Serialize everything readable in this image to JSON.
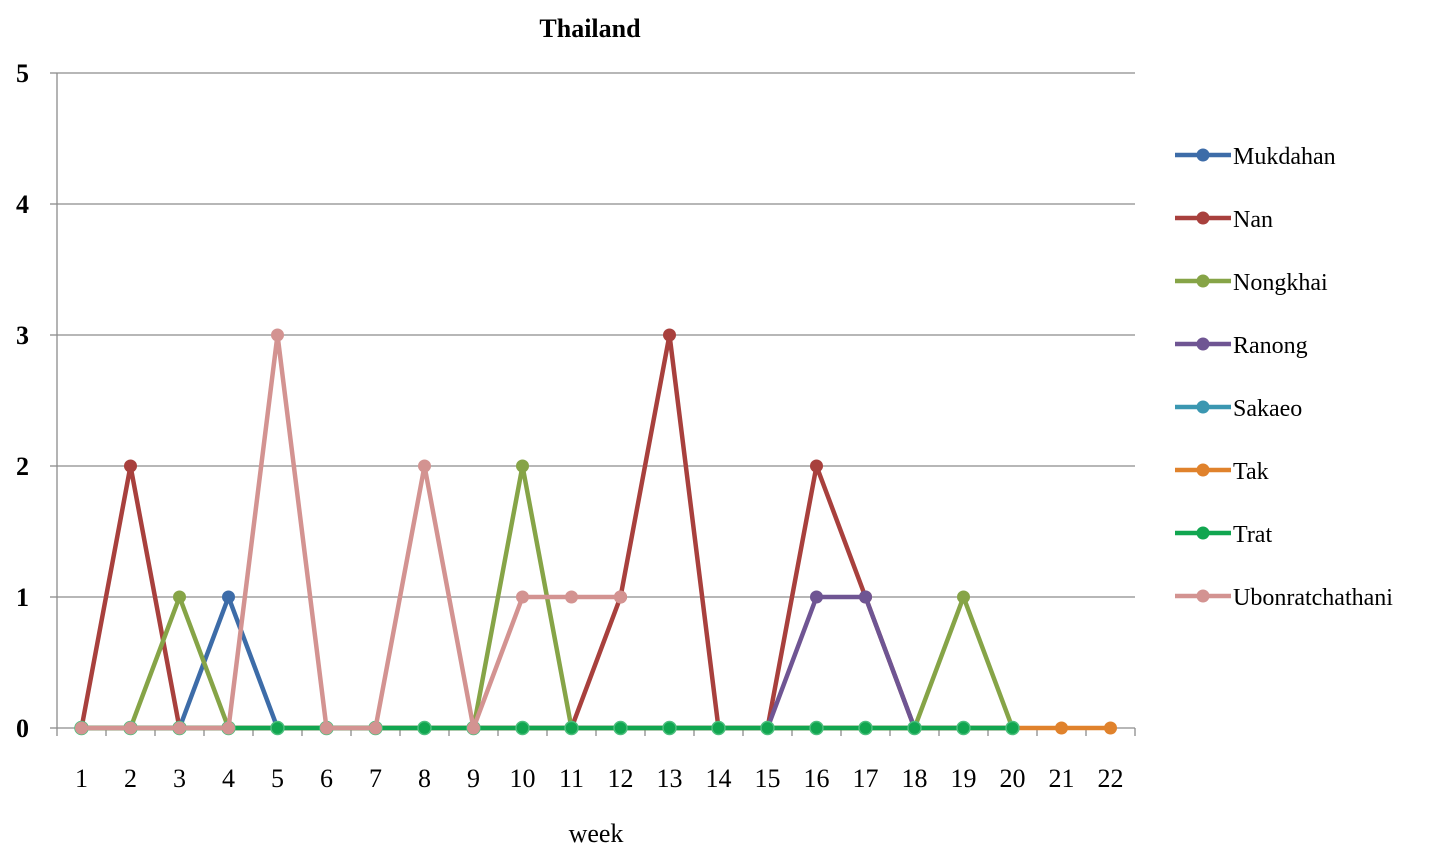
{
  "chart_data": {
    "type": "line",
    "title": "Thailand",
    "xlabel": "week",
    "ylabel": "",
    "ylim": [
      0,
      5
    ],
    "yticks": [
      "0",
      "1",
      "2",
      "3",
      "4",
      "5"
    ],
    "categories": [
      "1",
      "2",
      "3",
      "4",
      "5",
      "6",
      "7",
      "8",
      "9",
      "10",
      "11",
      "12",
      "13",
      "14",
      "15",
      "16",
      "17",
      "18",
      "19",
      "20",
      "21",
      "22"
    ],
    "grid": true,
    "legend_position": "right",
    "series": [
      {
        "name": "Mukdahan",
        "color": "#3D6CA8",
        "values": [
          0,
          0,
          0,
          1,
          0,
          0,
          0,
          0,
          0,
          0,
          0,
          0,
          0,
          0,
          0,
          0,
          0,
          0,
          0,
          0,
          null,
          null
        ]
      },
      {
        "name": "Nan",
        "color": "#A8403D",
        "values": [
          0,
          2,
          0,
          0,
          0,
          0,
          0,
          0,
          0,
          0,
          0,
          1,
          3,
          0,
          0,
          2,
          1,
          0,
          0,
          0,
          null,
          null
        ]
      },
      {
        "name": "Nongkhai",
        "color": "#86A447",
        "values": [
          0,
          0,
          1,
          0,
          0,
          0,
          0,
          0,
          0,
          2,
          0,
          0,
          0,
          0,
          0,
          0,
          0,
          0,
          1,
          0,
          null,
          null
        ]
      },
      {
        "name": "Ranong",
        "color": "#6F5593",
        "values": [
          0,
          0,
          0,
          0,
          0,
          0,
          0,
          0,
          0,
          0,
          0,
          0,
          0,
          0,
          0,
          1,
          1,
          0,
          0,
          0,
          null,
          null
        ]
      },
      {
        "name": "Sakaeo",
        "color": "#3B97B1",
        "values": [
          0,
          0,
          0,
          0,
          0,
          0,
          0,
          0,
          0,
          0,
          0,
          0,
          0,
          0,
          0,
          0,
          0,
          0,
          0,
          0,
          null,
          null
        ]
      },
      {
        "name": "Tak",
        "color": "#E0822C",
        "values": [
          0,
          0,
          0,
          0,
          0,
          0,
          0,
          0,
          0,
          0,
          0,
          0,
          0,
          0,
          0,
          0,
          0,
          0,
          0,
          0,
          0,
          0
        ]
      },
      {
        "name": "Trat",
        "color": "#11A650",
        "values": [
          0,
          0,
          0,
          0,
          0,
          0,
          0,
          0,
          0,
          0,
          0,
          0,
          0,
          0,
          0,
          0,
          0,
          0,
          0,
          0,
          null,
          null
        ]
      },
      {
        "name": "Ubonratchathani",
        "color": "#D39391",
        "values": [
          0,
          0,
          0,
          0,
          3,
          0,
          0,
          2,
          0,
          1,
          1,
          1,
          null,
          null,
          null,
          null,
          null,
          null,
          null,
          null,
          null,
          null
        ]
      }
    ]
  }
}
